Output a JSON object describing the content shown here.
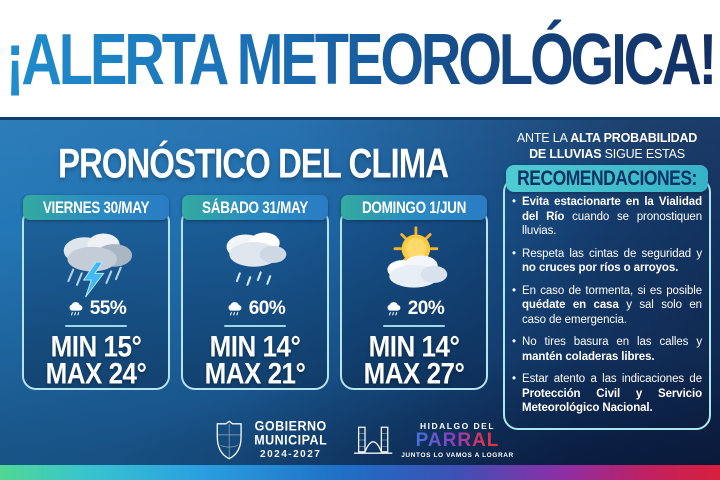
{
  "header": {
    "title": "¡ALERTA METEOROLÓGICA!"
  },
  "forecast": {
    "title": "PRONÓSTICO DEL CLIMA",
    "days": [
      {
        "label": "VIERNES 30/MAY",
        "icon": "storm-cloud-lightning-icon",
        "rain_probability": "55%",
        "min": "MIN 15°",
        "max": "MAX 24°"
      },
      {
        "label": "SÁBADO 31/MAY",
        "icon": "rain-cloud-icon",
        "rain_probability": "60%",
        "min": "MIN 14°",
        "max": "MAX 21°"
      },
      {
        "label": "DOMINGO 1/JUN",
        "icon": "sun-behind-cloud-icon",
        "rain_probability": "20%",
        "min": "MIN 14°",
        "max": "MAX 27°"
      }
    ],
    "probability_icon": "rain-cloud-icon"
  },
  "recommendations": {
    "intro_lines": [
      [
        {
          "text": "ANTE LA ",
          "bold": false
        },
        {
          "text": "ALTA PROBABILIDAD",
          "bold": true
        }
      ],
      [
        {
          "text": "DE LLUVIAS",
          "bold": true
        },
        {
          "text": " SIGUE ESTAS",
          "bold": false
        }
      ]
    ],
    "banner": "RECOMENDACIONES:",
    "items": [
      [
        {
          "text": "Evita estacionarte en la Vialidad del Río",
          "bold": true
        },
        {
          "text": " cuando se pronostiquen lluvias.",
          "bold": false
        }
      ],
      [
        {
          "text": "Respeta las cintas de seguridad y ",
          "bold": false
        },
        {
          "text": "no cruces por ríos o arroyos.",
          "bold": true
        }
      ],
      [
        {
          "text": "En caso de tormenta, si es posible ",
          "bold": false
        },
        {
          "text": "quédate en casa",
          "bold": true
        },
        {
          "text": " y sal solo en caso de emergencia.",
          "bold": false
        }
      ],
      [
        {
          "text": "No tires basura en las calles y ",
          "bold": false
        },
        {
          "text": "mantén coladeras libres.",
          "bold": true
        }
      ],
      [
        {
          "text": "Estar atento a las indicaciones de ",
          "bold": false
        },
        {
          "text": "Protección Civil y Servicio Meteorológico Nacional.",
          "bold": true
        }
      ]
    ]
  },
  "footer": {
    "government": {
      "crest_icon": "municipal-crest-icon",
      "line1": "GOBIERNO",
      "line2": "MUNICIPAL",
      "term": "2024-2027"
    },
    "city": {
      "bridge_icon": "parral-bridge-icon",
      "line1": "HIDALGO DEL",
      "name": "PARRAL",
      "slogan": "JUNTOS LO VAMOS A LOGRAR"
    }
  },
  "colors": {
    "title_gradient_start": "#1f8dcd",
    "title_gradient_end": "#122f63",
    "body_blue": "#1f6cac",
    "card_border": "#b5e3ee",
    "banner_teal": "#36b2c8",
    "rainbow": [
      "#50d893",
      "#2a9fe0",
      "#1f6ec5",
      "#8c2fa6",
      "#d91f3d"
    ]
  }
}
